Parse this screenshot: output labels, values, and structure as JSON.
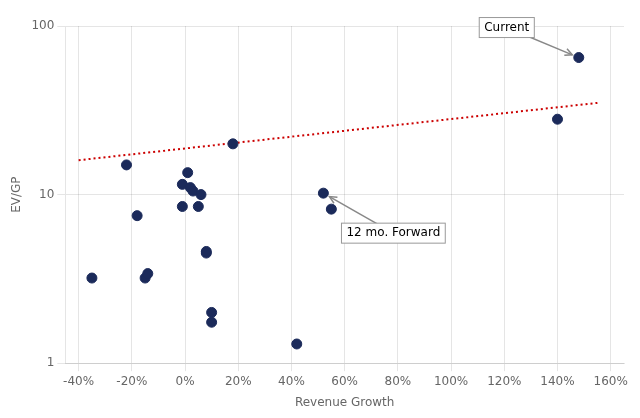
{
  "chart_data": {
    "type": "scatter",
    "xlabel": "Revenue Growth",
    "ylabel": "EV/GP",
    "series": [
      {
        "type": "scatter",
        "color": "#1b2a5a",
        "marker": "circle",
        "x": [
          -0.35,
          -0.22,
          -0.18,
          -0.15,
          -0.14,
          -0.01,
          -0.01,
          0.01,
          0.02,
          0.03,
          0.05,
          0.06,
          0.08,
          0.08,
          0.1,
          0.1,
          0.18,
          0.42,
          0.52,
          0.55,
          1.4,
          1.48
        ],
        "values": [
          3.2,
          15.0,
          7.5,
          3.2,
          3.4,
          11.5,
          8.5,
          13.5,
          11.0,
          10.5,
          8.5,
          10.0,
          4.5,
          4.6,
          2.0,
          1.75,
          20.0,
          1.3,
          10.2,
          8.2,
          28.0,
          65.0
        ]
      },
      {
        "type": "line",
        "color": "#cc0000",
        "line_style": "dotted",
        "x": [
          -0.4,
          1.55
        ],
        "values": [
          15.99558,
          34.99452
        ]
      }
    ],
    "xlim": [
      -0.45,
      1.65
    ],
    "ylim": [
      1,
      100
    ],
    "log": "y",
    "xticks": [
      {
        "value": -0.4,
        "label": "-40%"
      },
      {
        "value": -0.2,
        "label": "-20%"
      },
      {
        "value": 0.0,
        "label": "0%"
      },
      {
        "value": 0.2,
        "label": "20%"
      },
      {
        "value": 0.4,
        "label": "40%"
      },
      {
        "value": 0.6,
        "label": "60%"
      },
      {
        "value": 0.8,
        "label": "80%"
      },
      {
        "value": 1.0,
        "label": "100%"
      },
      {
        "value": 1.2,
        "label": "120%"
      },
      {
        "value": 1.4,
        "label": "140%"
      },
      {
        "value": 1.6,
        "label": "160%"
      }
    ],
    "yticks": [
      1,
      10,
      100
    ],
    "grid": true,
    "annotations": [
      {
        "text": "Current",
        "x": 1.48,
        "y": 65.0,
        "color": "#888888"
      },
      {
        "text": "12 mo. Forward",
        "x": 0.52,
        "y": 10.2,
        "color": "#888888"
      }
    ]
  }
}
